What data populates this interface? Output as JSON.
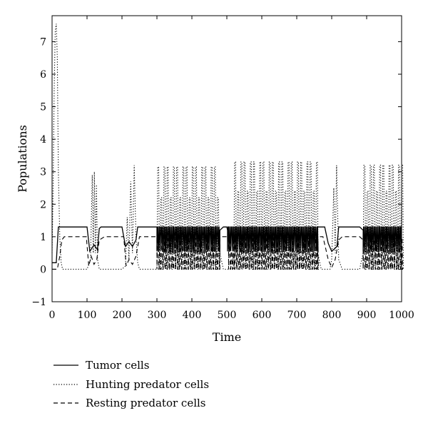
{
  "chart_data": {
    "type": "line",
    "title": "",
    "xlabel": "Time",
    "ylabel": "Populations",
    "xlim": [
      0,
      1000
    ],
    "ylim": [
      -1,
      7.8
    ],
    "xticks": [
      0,
      100,
      200,
      300,
      400,
      500,
      600,
      700,
      800,
      900,
      1000
    ],
    "yticks": [
      -1,
      0,
      1,
      2,
      3,
      4,
      5,
      6,
      7
    ],
    "grid": false,
    "legend_position": "below-left",
    "line_color": "#000000",
    "series": [
      {
        "name": "Tumor cells",
        "style": "solid",
        "segments": [
          {
            "type": "points",
            "x": [
              0,
              12,
              18,
              100,
              108,
              120,
              130,
              135,
              140,
              200,
              210,
              220,
              230,
              240,
              245,
              300
            ],
            "y": [
              0.2,
              0.2,
              1.3,
              1.3,
              0.55,
              0.75,
              0.6,
              1.25,
              1.3,
              1.3,
              0.7,
              0.85,
              0.7,
              0.9,
              1.3,
              1.3
            ]
          },
          {
            "type": "osc",
            "x0": 300,
            "x1": 480,
            "period": 5,
            "low": 0.55,
            "high": 1.3,
            "low_alt": 0.8
          },
          {
            "type": "points",
            "x": [
              480,
              490,
              500,
              502
            ],
            "y": [
              1.2,
              1.3,
              1.3,
              1.2
            ]
          },
          {
            "type": "osc",
            "x0": 502,
            "x1": 760,
            "period": 5,
            "low": 0.55,
            "high": 1.3,
            "low_alt": 0.75
          },
          {
            "type": "points",
            "x": [
              760,
              780,
              790,
              800,
              815,
              820,
              830,
              880,
              890
            ],
            "y": [
              1.3,
              1.3,
              0.8,
              0.55,
              0.7,
              1.3,
              1.3,
              1.3,
              1.2
            ]
          },
          {
            "type": "osc",
            "x0": 890,
            "x1": 1000,
            "period": 5,
            "low": 0.55,
            "high": 1.3,
            "low_alt": 0.75
          }
        ]
      },
      {
        "name": "Hunting predator cells",
        "style": "dotted",
        "segments": [
          {
            "type": "points",
            "x": [
              0,
              3,
              6,
              9,
              12,
              15,
              18,
              22,
              26,
              30,
              100,
              110,
              115,
              118,
              121,
              124,
              127,
              130,
              135,
              140,
              200,
              210,
              215,
              220,
              225,
              230,
              235,
              240,
              245,
              250,
              300
            ],
            "y": [
              0.5,
              2.5,
              5.5,
              7.3,
              7.55,
              6.5,
              3.0,
              1.0,
              0.2,
              0,
              0,
              0.3,
              2.9,
              0.5,
              3.0,
              0.5,
              2.6,
              0.3,
              0,
              0,
              0,
              0.1,
              1.6,
              0.3,
              2.7,
              0.5,
              3.2,
              1.0,
              0.2,
              0,
              0
            ]
          },
          {
            "type": "osc",
            "x0": 300,
            "x1": 480,
            "period": 9,
            "low": 0,
            "high": 3.15,
            "high_alt": 2.2
          },
          {
            "type": "points",
            "x": [
              480,
              490,
              510,
              520
            ],
            "y": [
              0.5,
              0,
              0,
              0.5
            ]
          },
          {
            "type": "osc",
            "x0": 520,
            "x1": 760,
            "period": 9,
            "low": 0,
            "high": 3.3,
            "high_alt": 2.4
          },
          {
            "type": "points",
            "x": [
              760,
              770,
              795,
              800,
              806,
              810,
              814,
              820,
              830,
              880,
              890
            ],
            "y": [
              0.5,
              0,
              0,
              0.3,
              2.5,
              0.5,
              3.2,
              0.3,
              0,
              0,
              0.5
            ]
          },
          {
            "type": "osc",
            "x0": 890,
            "x1": 1000,
            "period": 9,
            "low": 0,
            "high": 3.2,
            "high_alt": 2.4
          }
        ]
      },
      {
        "name": "Resting predator cells",
        "style": "dashed",
        "segments": [
          {
            "type": "points",
            "x": [
              0,
              15,
              22,
              28,
              35,
              98,
              105,
              112,
              120,
              128,
              135,
              150,
              205,
              212,
              220,
              230,
              240,
              250,
              300
            ],
            "y": [
              0,
              0,
              0.4,
              0.9,
              1.0,
              1.0,
              0.1,
              0.4,
              0.15,
              0.3,
              0.9,
              1.0,
              1.0,
              0.1,
              0.3,
              0.15,
              0.4,
              1.0,
              1.0
            ]
          },
          {
            "type": "osc",
            "x0": 300,
            "x1": 480,
            "period": 6,
            "low": 0,
            "high": 0.95,
            "high_alt": 0.55
          },
          {
            "type": "points",
            "x": [
              480,
              495,
              505
            ],
            "y": [
              1.0,
              1.0,
              1.0
            ]
          },
          {
            "type": "osc",
            "x0": 505,
            "x1": 760,
            "period": 6,
            "low": 0,
            "high": 0.95,
            "high_alt": 0.55
          },
          {
            "type": "points",
            "x": [
              760,
              775,
              790,
              800,
              810,
              820,
              830,
              880,
              890
            ],
            "y": [
              1.0,
              1.0,
              0.3,
              0.05,
              0.3,
              0.9,
              1.0,
              1.0,
              0.9
            ]
          },
          {
            "type": "osc",
            "x0": 890,
            "x1": 1000,
            "period": 6,
            "low": 0,
            "high": 0.95,
            "high_alt": 0.55
          }
        ]
      }
    ]
  }
}
